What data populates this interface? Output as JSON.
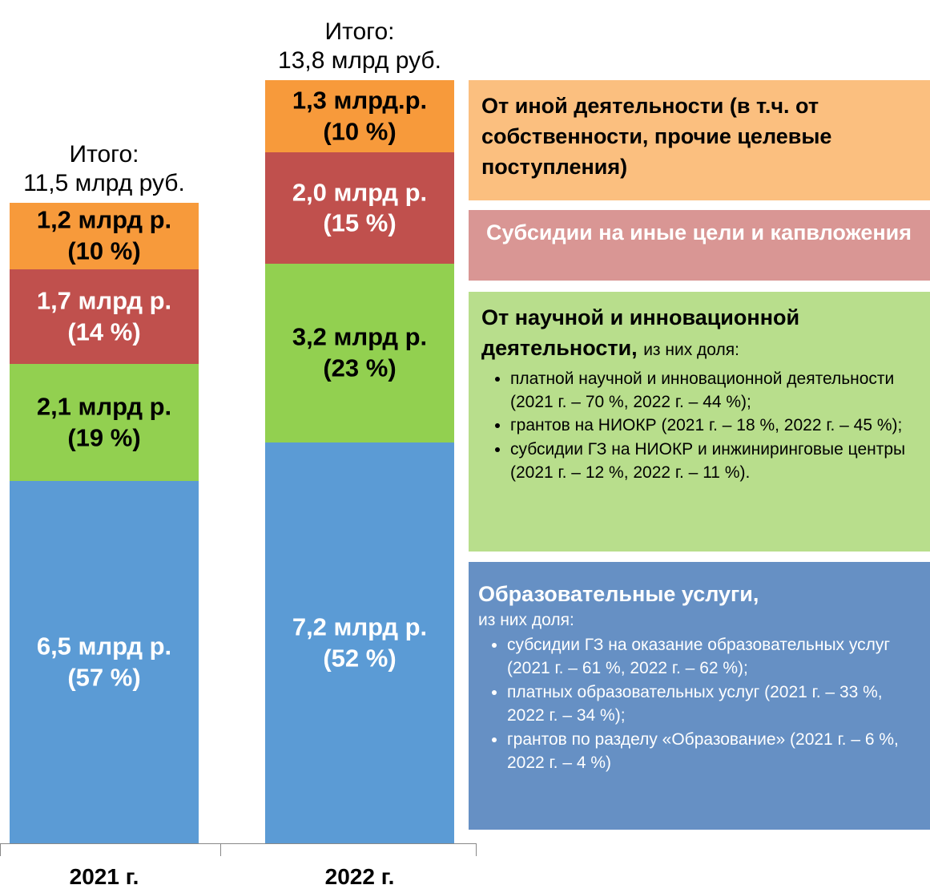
{
  "chart_data": {
    "type": "stacked_bar",
    "categories": [
      "2021 г.",
      "2022 г."
    ],
    "totals": [
      "Итого:\n11,5 млрд руб.",
      "Итого:\n13,8 млрд руб."
    ],
    "series": [
      {
        "name": "Образовательные услуги,",
        "color": "#5b9bd5",
        "legend_color": "#6690c4",
        "text_color": "#ffffff",
        "values": [
          6.5,
          7.2
        ],
        "value_labels": [
          "6,5 млрд р.\n(57 %)",
          "7,2 млрд р.\n(52 %)"
        ],
        "note": "из них доля:",
        "items": [
          "субсидии ГЗ на оказание образовательных услуг (2021 г. –  61 %, 2022 г. – 62 %);",
          "платных образовательных услуг (2021 г. – 33 %, 2022 г. – 34 %);",
          "грантов по разделу «Образование» (2021 г. – 6 %, 2022 г. – 4 %)"
        ]
      },
      {
        "name": "От научной и инновационной деятельности,",
        "color": "#92d050",
        "legend_color": "#b8de8c",
        "text_color": "#000000",
        "values": [
          2.1,
          3.2
        ],
        "value_labels": [
          "2,1 млрд р.\n(19 %)",
          "3,2 млрд р.\n(23 %)"
        ],
        "note": "из них доля:",
        "items": [
          "платной научной и инновационной деятельности (2021 г. – 70 %, 2022 г. – 44 %);",
          "грантов на НИОКР (2021 г. – 18 %, 2022 г. – 45 %);",
          "субсидии ГЗ на НИОКР и инжиниринговые центры (2021 г. – 12 %, 2022 г. – 11 %)."
        ]
      },
      {
        "name": "Субсидии на иные цели и капвложения",
        "color": "#c0504d",
        "legend_color": "#d99694",
        "text_color": "#ffffff",
        "values": [
          1.7,
          2.0
        ],
        "value_labels": [
          "1,7 млрд р.\n(14 %)",
          "2,0 млрд р.\n(15 %)"
        ]
      },
      {
        "name": "От иной деятельности (в т.ч.  от собственности, прочие целевые поступления)",
        "color": "#f79a3b",
        "legend_color": "#fbbf7f",
        "text_color": "#000000",
        "values": [
          1.2,
          1.3
        ],
        "value_labels": [
          "1,2 млрд р.\n(10 %)",
          "1,3 млрд.р.\n(10 %)"
        ]
      }
    ]
  }
}
